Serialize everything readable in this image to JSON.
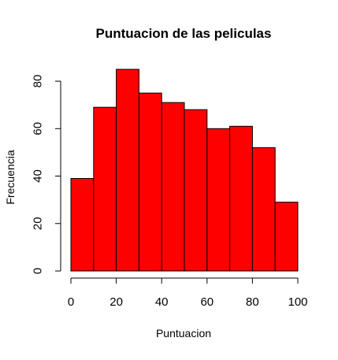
{
  "chart_data": {
    "type": "bar",
    "subtype": "histogram",
    "title": "Puntuacion de las peliculas",
    "xlabel": "Puntuacion",
    "ylabel": "Frecuencia",
    "bin_edges": [
      0,
      10,
      20,
      30,
      40,
      50,
      60,
      70,
      80,
      90,
      100
    ],
    "values": [
      39,
      69,
      85,
      75,
      71,
      68,
      60,
      61,
      52,
      29
    ],
    "xlim": [
      0,
      100
    ],
    "ylim": [
      0,
      85
    ],
    "x_ticks": [
      0,
      20,
      40,
      60,
      80,
      100
    ],
    "y_ticks": [
      0,
      20,
      40,
      60,
      80
    ],
    "x_tick_labels": [
      "0",
      "20",
      "40",
      "60",
      "80",
      "100"
    ],
    "y_tick_labels": [
      "0",
      "20",
      "40",
      "60",
      "80"
    ],
    "bar_color": "#ff0000",
    "border_color": "#000000",
    "grid": false
  }
}
